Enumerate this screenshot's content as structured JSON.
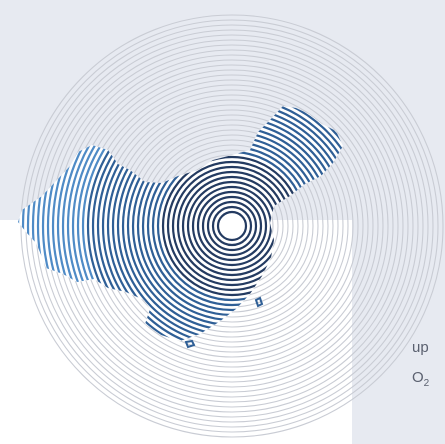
{
  "text": {
    "fragment_line1": "up",
    "fragment_line2": "O",
    "fragment_line2_sub": "2"
  },
  "colors": {
    "background": "#e7eaf1",
    "panel": "#ffffff",
    "ring_light": "#c9ccd4",
    "map_blue": "#2f5f96",
    "map_navy": "#243b61",
    "map_light_blue": "#4f8bc6"
  },
  "icons": {
    "center_symbol": "concentric-circles-icon",
    "map_region": "china-map-silhouette"
  }
}
